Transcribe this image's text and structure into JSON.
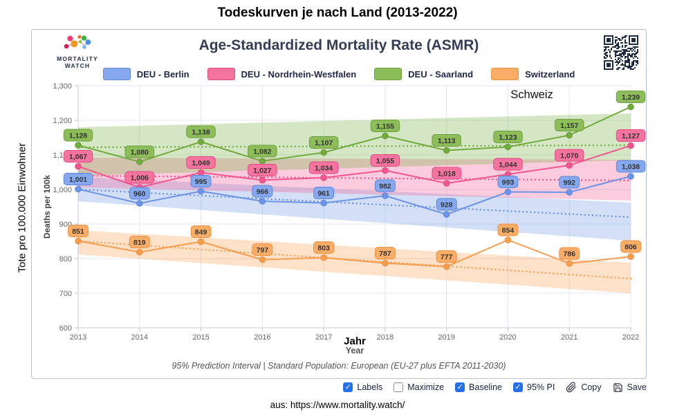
{
  "page": {
    "title": "Todeskurven je nach Land (2013-2022)",
    "source_caption": "aus: https://www.mortality.watch/"
  },
  "brand": {
    "line1": "MORTALITY",
    "line2": "WATCH"
  },
  "chart": {
    "title": "Age-Standardized Mortality Rate (ASMR)",
    "footnote": "95% Prediction Interval | Standard Population: European (EU-27 plus EFTA 2011-2030)",
    "outer_y_label": "Tote pro 100.000 Einwohner"
  },
  "chart_data": {
    "type": "line",
    "title": "Age-Standardized Mortality Rate (ASMR)",
    "xlabel": "Year",
    "ylabel": "Deaths per 100k",
    "ylim": [
      600,
      1300
    ],
    "yticks": [
      600,
      700,
      800,
      900,
      1000,
      1100,
      1200,
      1300
    ],
    "x": [
      2013,
      2014,
      2015,
      2016,
      2017,
      2018,
      2019,
      2020,
      2021,
      2022
    ],
    "grid": true,
    "legend_position": "top",
    "annotations": [
      {
        "text": "Schweiz",
        "x": 2020.4,
        "y": 1265,
        "style": "plain"
      },
      {
        "text": "Jahr",
        "x": 2017.5,
        "y": 555,
        "style": "bold"
      }
    ],
    "series": [
      {
        "name": "DEU - Berlin",
        "values": [
          1001,
          960,
          995,
          966,
          961,
          982,
          928,
          993,
          992,
          1038
        ],
        "baseline_trend": [
          1000,
          920
        ],
        "pi_band": {
          "start": [
            966,
            1036
          ],
          "end": [
            852,
            962
          ]
        },
        "color": "#6d94e6",
        "pill_fill": "#85a8ef",
        "pill_border": "#5f87d8"
      },
      {
        "name": "DEU - Nordrhein-Westfalen",
        "values": [
          1067,
          1006,
          1049,
          1027,
          1034,
          1055,
          1018,
          1044,
          1070,
          1127
        ],
        "baseline_trend": [
          1040,
          1026
        ],
        "pi_band": {
          "start": [
            1006,
            1092
          ],
          "end": [
            968,
            1086
          ]
        },
        "color": "#f1568e",
        "pill_fill": "#f4739f",
        "pill_border": "#e04a81"
      },
      {
        "name": "DEU - Saarland",
        "values": [
          1128,
          1080,
          1138,
          1082,
          1107,
          1155,
          1113,
          1123,
          1157,
          1239
        ],
        "baseline_trend": [
          1122,
          1128
        ],
        "pi_band": {
          "start": [
            1040,
            1180
          ],
          "end": [
            1085,
            1220
          ]
        },
        "color": "#71ab3d",
        "pill_fill": "#8cbd58",
        "pill_border": "#6d9e41"
      },
      {
        "name": "Switzerland",
        "values": [
          851,
          819,
          849,
          797,
          803,
          787,
          777,
          854,
          786,
          806
        ],
        "baseline_trend": [
          851,
          742
        ],
        "pi_band": {
          "start": [
            812,
            882
          ],
          "end": [
            700,
            788
          ]
        },
        "color": "#f79d4d",
        "pill_fill": "#f9ad66",
        "pill_border": "#ec9143"
      }
    ]
  },
  "controls": {
    "checkboxes": [
      {
        "id": "labels",
        "label": "Labels",
        "checked": true
      },
      {
        "id": "maximize",
        "label": "Maximize",
        "checked": false
      },
      {
        "id": "baseline",
        "label": "Baseline",
        "checked": true
      },
      {
        "id": "pi",
        "label": "95% PI",
        "checked": true
      }
    ],
    "copy_label": "Copy",
    "save_label": "Save"
  }
}
